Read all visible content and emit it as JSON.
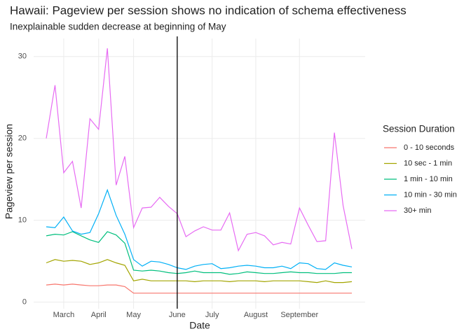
{
  "chart_data": {
    "type": "line",
    "title": "Hawaii: Pageview per session shows no indication of schema effectiveness",
    "subtitle": "Inexplainable sudden decrease at beginning of May",
    "x_label": "Date",
    "y_label": "Pageview per session",
    "legend_title": "Session Duration",
    "legend_position": "right",
    "grid": true,
    "categories": [
      null,
      null,
      "March",
      null,
      null,
      null,
      "April",
      null,
      null,
      null,
      "May",
      null,
      null,
      null,
      null,
      "June",
      null,
      null,
      null,
      "July",
      null,
      null,
      null,
      null,
      "August",
      null,
      null,
      null,
      null,
      "September",
      null,
      null,
      null,
      null,
      null,
      null
    ],
    "vline": "June",
    "ylim": [
      -0.8,
      32.2
    ],
    "yticks": [
      0,
      10,
      20,
      30
    ],
    "series": [
      {
        "name": "0 - 10 seconds",
        "color": "#F8766D",
        "values": [
          2.1,
          2.2,
          2.1,
          2.2,
          2.1,
          2.0,
          2.0,
          2.1,
          2.1,
          1.9,
          1.1,
          1.1,
          1.1,
          1.1,
          1.1,
          1.1,
          1.1,
          1.1,
          1.1,
          1.1,
          1.1,
          1.1,
          1.1,
          1.1,
          1.1,
          1.1,
          1.1,
          1.1,
          1.1,
          1.1,
          1.1,
          1.1,
          1.1,
          1.1,
          1.1,
          1.1
        ]
      },
      {
        "name": "10 sec - 1 min",
        "color": "#A3A500",
        "values": [
          4.8,
          5.2,
          5.0,
          5.1,
          5.0,
          4.6,
          4.8,
          5.2,
          4.8,
          4.5,
          2.6,
          2.8,
          2.6,
          2.6,
          2.6,
          2.6,
          2.6,
          2.5,
          2.6,
          2.6,
          2.6,
          2.5,
          2.6,
          2.6,
          2.6,
          2.5,
          2.6,
          2.6,
          2.6,
          2.6,
          2.5,
          2.4,
          2.6,
          2.4,
          2.4,
          2.5
        ]
      },
      {
        "name": "1 min - 10 min",
        "color": "#00BF7D",
        "values": [
          8.1,
          8.3,
          8.2,
          8.6,
          8.1,
          7.6,
          7.3,
          8.6,
          8.2,
          7.2,
          3.9,
          3.8,
          3.9,
          3.8,
          3.6,
          3.5,
          3.6,
          3.8,
          3.6,
          3.6,
          3.6,
          3.4,
          3.5,
          3.7,
          3.6,
          3.5,
          3.5,
          3.6,
          3.7,
          3.6,
          3.6,
          3.5,
          3.5,
          3.5,
          3.6,
          3.6
        ]
      },
      {
        "name": "10 min - 30 min",
        "color": "#00B0F6",
        "values": [
          9.2,
          9.1,
          10.4,
          8.7,
          8.3,
          8.5,
          10.8,
          13.7,
          10.6,
          8.3,
          5.2,
          4.4,
          5.0,
          4.9,
          4.6,
          4.2,
          4.0,
          4.4,
          4.6,
          4.7,
          4.1,
          4.2,
          4.4,
          4.5,
          4.4,
          4.2,
          4.2,
          4.4,
          4.1,
          4.8,
          4.7,
          4.1,
          4.0,
          4.8,
          4.5,
          4.3
        ]
      },
      {
        "name": "30+ min",
        "color": "#E76BF3",
        "values": [
          20.0,
          26.5,
          15.8,
          17.2,
          11.5,
          22.4,
          21.1,
          31.0,
          14.3,
          17.8,
          9.1,
          11.5,
          11.6,
          12.8,
          11.7,
          10.8,
          8.0,
          8.7,
          9.2,
          8.8,
          8.8,
          10.9,
          6.3,
          8.3,
          8.5,
          8.1,
          7.0,
          7.3,
          7.1,
          11.5,
          9.4,
          7.4,
          7.5,
          20.7,
          11.8,
          6.5
        ]
      }
    ]
  }
}
